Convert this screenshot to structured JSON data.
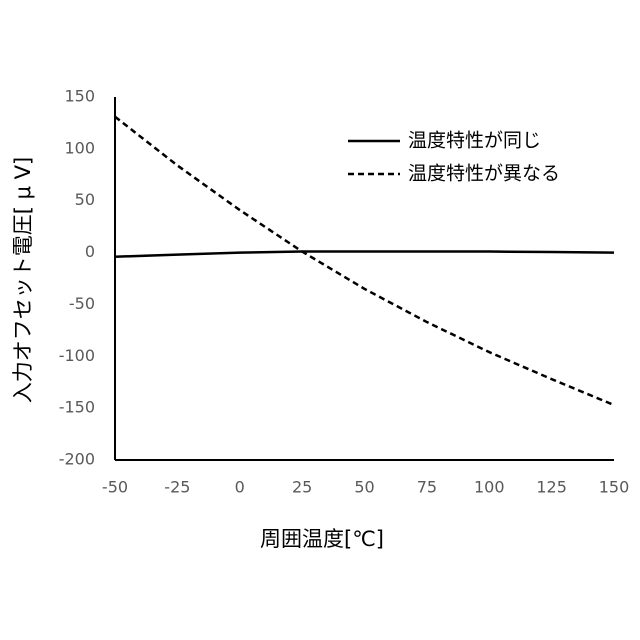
{
  "chart_data": {
    "type": "line",
    "x_label": "周囲温度[℃]",
    "y_label": "入力オフセット電圧[ μ V]",
    "x": [
      -50,
      -25,
      0,
      25,
      50,
      75,
      100,
      125,
      150
    ],
    "series": [
      {
        "name": "温度特性が同じ",
        "color": "#000000",
        "line_style": "solid",
        "values": [
          -4,
          -2,
          0,
          1,
          1,
          1,
          1,
          0.5,
          0
        ]
      },
      {
        "name": "温度特性が異なる",
        "color": "#000000",
        "line_style": "dashed",
        "values": [
          131,
          84,
          41,
          1,
          -35,
          -67,
          -96,
          -122,
          -147
        ]
      }
    ],
    "xlim": [
      -50,
      150
    ],
    "xticks": [
      -50,
      -25,
      0,
      25,
      50,
      75,
      100,
      125,
      150
    ],
    "ylim": [
      -200,
      150
    ],
    "yticks": [
      -200,
      -150,
      -100,
      -50,
      0,
      50,
      100,
      150
    ],
    "grid": false,
    "legend": "upper right"
  }
}
